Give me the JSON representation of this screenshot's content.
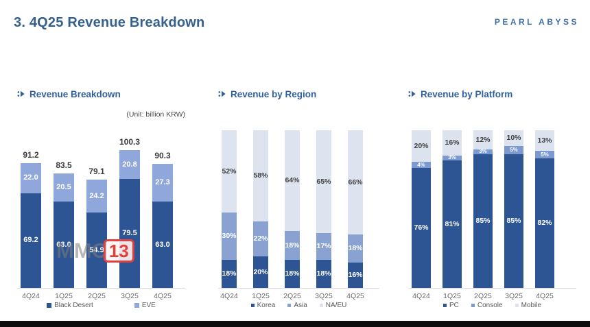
{
  "header": {
    "title": "3. 4Q25 Revenue Breakdown",
    "logo": "PEARL ABYSS"
  },
  "watermark": {
    "prefix": "MMO",
    "suffix": "13"
  },
  "chart_data": [
    {
      "type": "bar",
      "stacked": true,
      "title": "Revenue Breakdown",
      "unit_note": "(Unit: billion KRW)",
      "categories": [
        "4Q24",
        "1Q25",
        "2Q25",
        "3Q25",
        "4Q25"
      ],
      "series": [
        {
          "name": "Black Desert",
          "color": "#2d5493",
          "label_color": "#ffffff",
          "values": [
            69.2,
            63.0,
            54.9,
            79.5,
            63.0
          ],
          "labels": [
            "69.2",
            "63.0",
            "54.9",
            "79.5",
            "63.0"
          ]
        },
        {
          "name": "EVE",
          "color": "#8fa7da",
          "label_color": "#ffffff",
          "values": [
            22.0,
            20.5,
            24.2,
            20.8,
            27.3
          ],
          "labels": [
            "22.0",
            "20.5",
            "24.2",
            "20.8",
            "27.3"
          ]
        }
      ],
      "totals": [
        "91.2",
        "83.5",
        "79.1",
        "100.3",
        "90.3"
      ],
      "ylim": [
        0,
        115
      ],
      "legend_position": "bottom",
      "grid": false
    },
    {
      "type": "bar",
      "stacked": true,
      "title": "Revenue by Region",
      "categories": [
        "4Q24",
        "1Q25",
        "2Q25",
        "3Q25",
        "4Q25"
      ],
      "series": [
        {
          "name": "Korea",
          "color": "#2d5493",
          "label_color": "#ffffff",
          "values": [
            18,
            20,
            18,
            18,
            16
          ],
          "labels": [
            "18%",
            "20%",
            "18%",
            "18%",
            "16%"
          ]
        },
        {
          "name": "Asia",
          "color": "#8aa2d2",
          "label_color": "#ffffff",
          "values": [
            30,
            22,
            18,
            17,
            18
          ],
          "labels": [
            "30%",
            "22%",
            "18%",
            "17%",
            "18%"
          ]
        },
        {
          "name": "NA/EU",
          "color": "#dde3ef",
          "label_color": "#404040",
          "values": [
            52,
            58,
            64,
            65,
            66
          ],
          "labels": [
            "52%",
            "58%",
            "64%",
            "65%",
            "66%"
          ]
        }
      ],
      "ylim": [
        0,
        100
      ],
      "legend_position": "bottom",
      "grid": false
    },
    {
      "type": "bar",
      "stacked": true,
      "title": "Revenue by Platform",
      "categories": [
        "4Q24",
        "1Q25",
        "2Q25",
        "3Q25",
        "4Q25"
      ],
      "series": [
        {
          "name": "PC",
          "color": "#2d5493",
          "label_color": "#ffffff",
          "values": [
            76,
            81,
            85,
            85,
            82
          ],
          "labels": [
            "76%",
            "81%",
            "85%",
            "85%",
            "82%"
          ]
        },
        {
          "name": "Console",
          "color": "#7c9ad0",
          "label_color": "#ffffff",
          "values": [
            4,
            3,
            3,
            5,
            5
          ],
          "labels": [
            "4%",
            "3%",
            "3%",
            "5%",
            "5%"
          ]
        },
        {
          "name": "Mobile",
          "color": "#dce2ee",
          "label_color": "#404040",
          "values": [
            20,
            16,
            12,
            10,
            13
          ],
          "labels": [
            "20%",
            "16%",
            "12%",
            "10%",
            "13%"
          ]
        }
      ],
      "ylim": [
        0,
        100
      ],
      "legend_position": "bottom",
      "grid": false
    }
  ]
}
